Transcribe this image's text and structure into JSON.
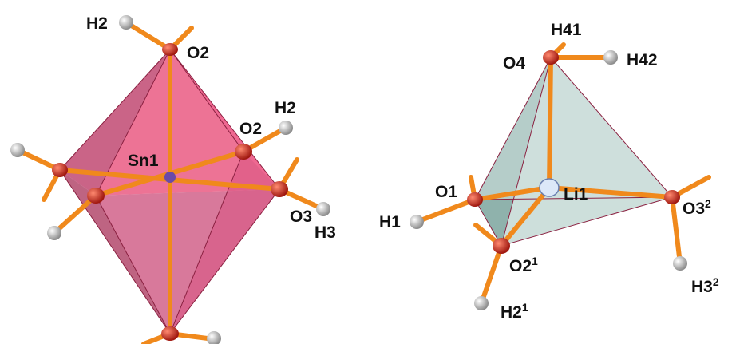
{
  "nodes": [
    {
      "label": "H2"
    },
    {
      "label": "O2"
    },
    {
      "label": "O2"
    },
    {
      "label": "H2"
    },
    {
      "label": "Sn1"
    },
    {
      "label": "O3"
    },
    {
      "label": "H3"
    },
    {
      "label": "H41"
    },
    {
      "label": "O4"
    },
    {
      "label": "H42"
    },
    {
      "label": "Li1"
    },
    {
      "label": "O1"
    },
    {
      "label": "H1"
    },
    {
      "label": "O3",
      "sup": "2"
    },
    {
      "label": "O2",
      "sup": "1"
    },
    {
      "label": "H3",
      "sup": "2"
    },
    {
      "label": "H2",
      "sup": "1"
    }
  ]
}
